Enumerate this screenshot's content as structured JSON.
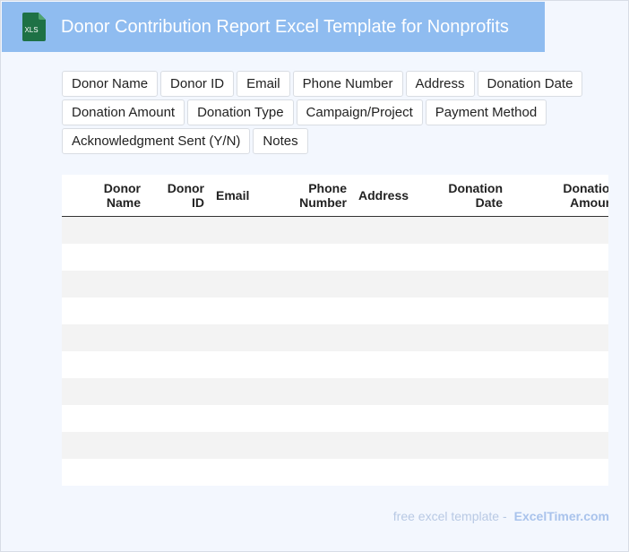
{
  "header": {
    "title": "Donor Contribution Report Excel Template for Nonprofits",
    "file_icon_label": "XLS",
    "brand_color": "#8fbcf0",
    "icon_color": "#1e7145"
  },
  "fields": [
    "Donor Name",
    "Donor ID",
    "Email",
    "Phone Number",
    "Address",
    "Donation Date",
    "Donation Amount",
    "Donation Type",
    "Campaign/Project",
    "Payment Method",
    "Acknowledgment Sent (Y/N)",
    "Notes"
  ],
  "table": {
    "columns": [
      {
        "line1": "Donor",
        "line2": "Name"
      },
      {
        "line1": "Donor",
        "line2": "ID"
      },
      {
        "line1": "Email",
        "line2": ""
      },
      {
        "line1": "Phone",
        "line2": "Number"
      },
      {
        "line1": "Address",
        "line2": ""
      },
      {
        "line1": "Donation",
        "line2": "Date"
      },
      {
        "line1": "Donation",
        "line2": "Amount"
      }
    ],
    "row_count": 10
  },
  "footer": {
    "text": "free excel template -",
    "brand": "ExcelTimer.com"
  }
}
